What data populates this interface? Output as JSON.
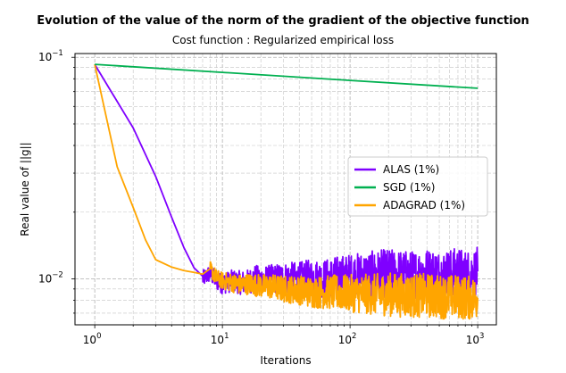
{
  "chart_data": {
    "type": "line",
    "title": "Evolution of the value of the norm of the gradient of the objective function",
    "subtitle": "Cost function : Regularized empirical loss",
    "xlabel": "Iterations",
    "ylabel": "Real value of ||g||",
    "xscale": "log",
    "yscale": "log",
    "xlim": [
      0.7,
      1400
    ],
    "ylim": [
      0.0062,
      0.104
    ],
    "grid": "major and minor, dashed",
    "legend_position": "center-right",
    "x_ticks": [
      {
        "base": "10",
        "exp": "0",
        "value": 1
      },
      {
        "base": "10",
        "exp": "1",
        "value": 10
      },
      {
        "base": "10",
        "exp": "2",
        "value": 100
      },
      {
        "base": "10",
        "exp": "3",
        "value": 1000
      }
    ],
    "y_ticks": [
      {
        "base": "10",
        "exp": "−2",
        "value": 0.01
      },
      {
        "base": "10",
        "exp": "−1",
        "value": 0.1
      }
    ],
    "series": [
      {
        "name": "ALAS (1%)",
        "color": "#7f00ff",
        "x": [
          1,
          2,
          3,
          4,
          5,
          6,
          7,
          8,
          9,
          10,
          12,
          14,
          16,
          18,
          20,
          25,
          30,
          40,
          50,
          60,
          80,
          100,
          150,
          200,
          300,
          400,
          500,
          600,
          700,
          800,
          900,
          1000
        ],
        "y": [
          0.093,
          0.048,
          0.029,
          0.019,
          0.0138,
          0.0112,
          0.01,
          0.0106,
          0.0098,
          0.0095,
          0.0098,
          0.0096,
          0.0097,
          0.0101,
          0.0099,
          0.01,
          0.0101,
          0.01,
          0.0102,
          0.01,
          0.0103,
          0.0104,
          0.0105,
          0.0106,
          0.0104,
          0.0107,
          0.0105,
          0.0106,
          0.0108,
          0.0105,
          0.0106,
          0.0108
        ]
      },
      {
        "name": "SGD (1%)",
        "color": "#00b050",
        "x": [
          1,
          10,
          100,
          1000
        ],
        "y": [
          0.093,
          0.0855,
          0.0787,
          0.0725
        ]
      },
      {
        "name": "ADAGRAD (1%)",
        "color": "#ffa500",
        "x": [
          1,
          1.5,
          2,
          2.5,
          3,
          4,
          5,
          6,
          7,
          8,
          9,
          10,
          12,
          14,
          16,
          20,
          25,
          30,
          40,
          50,
          70,
          100,
          150,
          200,
          300,
          400,
          500,
          600,
          700,
          800,
          900,
          1000
        ],
        "y": [
          0.093,
          0.032,
          0.021,
          0.015,
          0.0122,
          0.0113,
          0.0109,
          0.0107,
          0.0105,
          0.0111,
          0.0101,
          0.0098,
          0.0096,
          0.0094,
          0.0095,
          0.0093,
          0.0092,
          0.009,
          0.0089,
          0.0087,
          0.0087,
          0.0086,
          0.0085,
          0.0085,
          0.0084,
          0.0084,
          0.0083,
          0.0083,
          0.0083,
          0.0082,
          0.0082,
          0.0082
        ]
      }
    ]
  }
}
